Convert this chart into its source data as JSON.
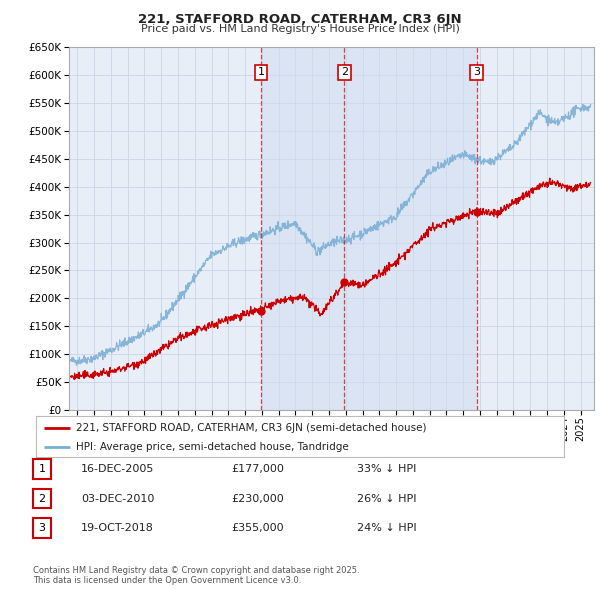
{
  "title1": "221, STAFFORD ROAD, CATERHAM, CR3 6JN",
  "title2": "Price paid vs. HM Land Registry's House Price Index (HPI)",
  "legend1": "221, STAFFORD ROAD, CATERHAM, CR3 6JN (semi-detached house)",
  "legend2": "HPI: Average price, semi-detached house, Tandridge",
  "color_price": "#cc0000",
  "color_hpi": "#7bafd4",
  "color_vline": "#cc3333",
  "color_grid": "#c8d4e8",
  "bg_color": "#ffffff",
  "plot_bg": "#e8eef8",
  "shade_color": "#d0dcf0",
  "ylim": [
    0,
    650000
  ],
  "yticks": [
    0,
    50000,
    100000,
    150000,
    200000,
    250000,
    300000,
    350000,
    400000,
    450000,
    500000,
    550000,
    600000,
    650000
  ],
  "transactions": [
    {
      "label": "1",
      "date": "16-DEC-2005",
      "price": 177000,
      "pct": "33%",
      "x_year": 2005.95
    },
    {
      "label": "2",
      "date": "03-DEC-2010",
      "price": 230000,
      "pct": "26%",
      "x_year": 2010.92
    },
    {
      "label": "3",
      "date": "19-OCT-2018",
      "price": 355000,
      "pct": "24%",
      "x_year": 2018.8
    }
  ],
  "footer": "Contains HM Land Registry data © Crown copyright and database right 2025.\nThis data is licensed under the Open Government Licence v3.0.",
  "xlim_start": 1994.5,
  "xlim_end": 2025.8
}
